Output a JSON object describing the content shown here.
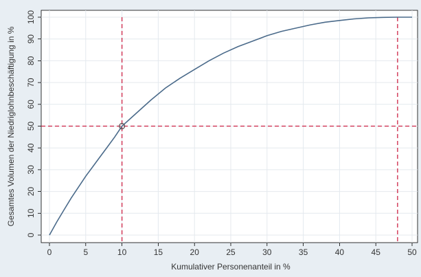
{
  "chart_data": {
    "type": "line",
    "title": "",
    "xlabel": "Kumulativer Personenanteil in %",
    "ylabel": "Gesamtes Volumen der Niedriglohnbeschäftigung in %",
    "xlim": [
      0,
      50
    ],
    "ylim": [
      0,
      100
    ],
    "xticks": [
      0,
      5,
      10,
      15,
      20,
      25,
      30,
      35,
      40,
      45,
      50
    ],
    "yticks": [
      0,
      10,
      20,
      30,
      40,
      50,
      60,
      70,
      80,
      90,
      100
    ],
    "grid": true,
    "series": [
      {
        "x": [
          0,
          1,
          2,
          3,
          4,
          5,
          6,
          7,
          8,
          9,
          10,
          12,
          14,
          16,
          18,
          20,
          22,
          24,
          26,
          28,
          30,
          32,
          34,
          36,
          38,
          40,
          42,
          44,
          46,
          48,
          50
        ],
        "y": [
          0,
          6,
          11.5,
          17,
          22,
          27,
          31.5,
          36,
          40.5,
          45,
          50,
          56,
          62,
          67.5,
          72,
          76,
          80,
          83.5,
          86.5,
          89,
          91.5,
          93.5,
          95,
          96.5,
          97.7,
          98.5,
          99.2,
          99.7,
          99.9,
          100,
          100
        ],
        "color": "#4a6a8a"
      }
    ],
    "reference_lines": [
      {
        "axis": "x",
        "value": 10,
        "color": "#cc2244"
      },
      {
        "axis": "x",
        "value": 48,
        "color": "#cc2244"
      },
      {
        "axis": "y",
        "value": 50,
        "color": "#cc2244"
      }
    ],
    "marker": {
      "x": 10,
      "y": 50
    }
  }
}
